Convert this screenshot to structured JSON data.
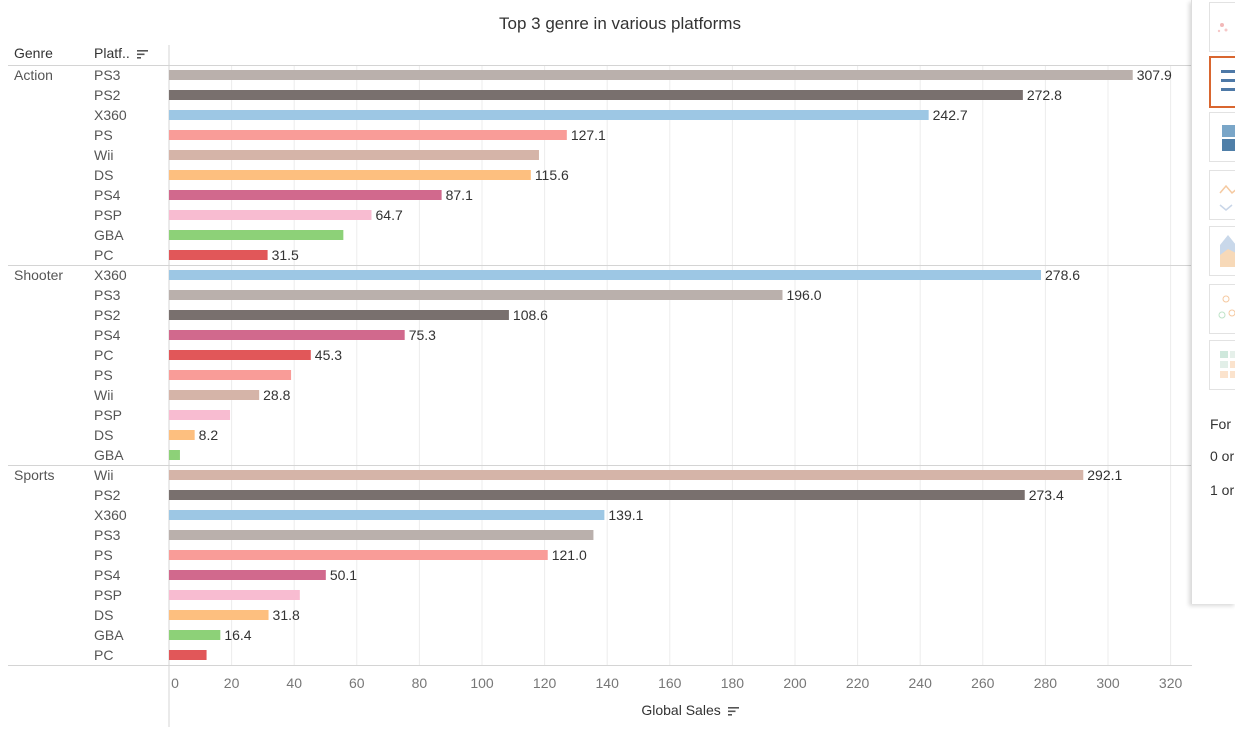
{
  "chart_data": {
    "type": "bar",
    "title": "Top 3 genre in various platforms",
    "row_headers": [
      "Genre",
      "Platf.."
    ],
    "xlabel": "Global Sales",
    "xlim": [
      0,
      330
    ],
    "x_ticks": [
      0,
      20,
      40,
      60,
      80,
      100,
      120,
      140,
      160,
      180,
      200,
      220,
      240,
      260,
      280,
      300,
      320
    ],
    "grid": "vertical",
    "colors": {
      "PS3": "#bab0ac",
      "PS2": "#79706e",
      "X360": "#9dc7e4",
      "PS": "#f99c98",
      "Wii": "#d5b4a8",
      "DS": "#fdbf7f",
      "PS4": "#d1698d",
      "PSP": "#f8bcd1",
      "GBA": "#8dd178",
      "PC": "#e15759"
    },
    "groups": [
      {
        "genre": "Action",
        "bars": [
          {
            "platform": "PS3",
            "value": 307.9,
            "label": "307.9"
          },
          {
            "platform": "PS2",
            "value": 272.8,
            "label": "272.8"
          },
          {
            "platform": "X360",
            "value": 242.7,
            "label": "242.7"
          },
          {
            "platform": "PS",
            "value": 127.1,
            "label": "127.1"
          },
          {
            "platform": "Wii",
            "value": 118.2,
            "label": ""
          },
          {
            "platform": "DS",
            "value": 115.6,
            "label": "115.6"
          },
          {
            "platform": "PS4",
            "value": 87.1,
            "label": "87.1"
          },
          {
            "platform": "PSP",
            "value": 64.7,
            "label": "64.7"
          },
          {
            "platform": "GBA",
            "value": 55.7,
            "label": ""
          },
          {
            "platform": "PC",
            "value": 31.5,
            "label": "31.5"
          }
        ]
      },
      {
        "genre": "Shooter",
        "bars": [
          {
            "platform": "X360",
            "value": 278.6,
            "label": "278.6"
          },
          {
            "platform": "PS3",
            "value": 196.0,
            "label": "196.0"
          },
          {
            "platform": "PS2",
            "value": 108.6,
            "label": "108.6"
          },
          {
            "platform": "PS4",
            "value": 75.3,
            "label": "75.3"
          },
          {
            "platform": "PC",
            "value": 45.3,
            "label": "45.3"
          },
          {
            "platform": "PS",
            "value": 39.0,
            "label": ""
          },
          {
            "platform": "Wii",
            "value": 28.8,
            "label": "28.8"
          },
          {
            "platform": "PSP",
            "value": 19.5,
            "label": ""
          },
          {
            "platform": "DS",
            "value": 8.2,
            "label": "8.2"
          },
          {
            "platform": "GBA",
            "value": 3.5,
            "label": ""
          }
        ]
      },
      {
        "genre": "Sports",
        "bars": [
          {
            "platform": "Wii",
            "value": 292.1,
            "label": "292.1"
          },
          {
            "platform": "PS2",
            "value": 273.4,
            "label": "273.4"
          },
          {
            "platform": "X360",
            "value": 139.1,
            "label": "139.1"
          },
          {
            "platform": "PS3",
            "value": 135.6,
            "label": ""
          },
          {
            "platform": "PS",
            "value": 121.0,
            "label": "121.0"
          },
          {
            "platform": "PS4",
            "value": 50.1,
            "label": "50.1"
          },
          {
            "platform": "PSP",
            "value": 41.8,
            "label": ""
          },
          {
            "platform": "DS",
            "value": 31.8,
            "label": "31.8"
          },
          {
            "platform": "GBA",
            "value": 16.4,
            "label": "16.4"
          },
          {
            "platform": "PC",
            "value": 12.0,
            "label": ""
          }
        ]
      }
    ]
  },
  "side_panel": {
    "text_1": "For",
    "text_2": "0 or",
    "text_3": "1 or"
  }
}
